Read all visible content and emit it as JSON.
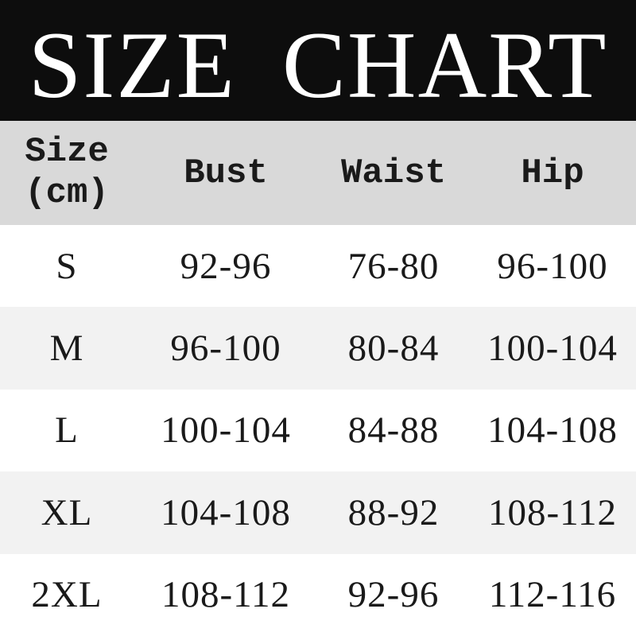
{
  "banner": {
    "title": "SIZE CHART"
  },
  "table": {
    "header": {
      "size_line1": "Size",
      "size_line2": "(cm)",
      "bust": "Bust",
      "waist": "Waist",
      "hip": "Hip"
    },
    "rows": [
      {
        "size": "S",
        "bust": "92-96",
        "waist": "76-80",
        "hip": "96-100"
      },
      {
        "size": "M",
        "bust": "96-100",
        "waist": "80-84",
        "hip": "100-104"
      },
      {
        "size": "L",
        "bust": "100-104",
        "waist": "84-88",
        "hip": "104-108"
      },
      {
        "size": "XL",
        "bust": "104-108",
        "waist": "88-92",
        "hip": "108-112"
      },
      {
        "size": "2XL",
        "bust": "108-112",
        "waist": "92-96",
        "hip": "112-116"
      }
    ]
  },
  "colors": {
    "banner_bg": "#0d0d0d",
    "title_text": "#ffffff",
    "header_row_bg": "#d9d9d9",
    "stripe_row_bg": "#f2f2f2",
    "plain_row_bg": "#ffffff",
    "table_text": "#1a1a1a"
  },
  "chart_data": {
    "type": "table",
    "title": "SIZE CHART",
    "columns": [
      "Size (cm)",
      "Bust",
      "Waist",
      "Hip"
    ],
    "rows": [
      [
        "S",
        "92-96",
        "76-80",
        "96-100"
      ],
      [
        "M",
        "96-100",
        "80-84",
        "100-104"
      ],
      [
        "L",
        "100-104",
        "84-88",
        "104-108"
      ],
      [
        "XL",
        "104-108",
        "88-92",
        "108-112"
      ],
      [
        "2XL",
        "108-112",
        "92-96",
        "112-116"
      ]
    ]
  }
}
